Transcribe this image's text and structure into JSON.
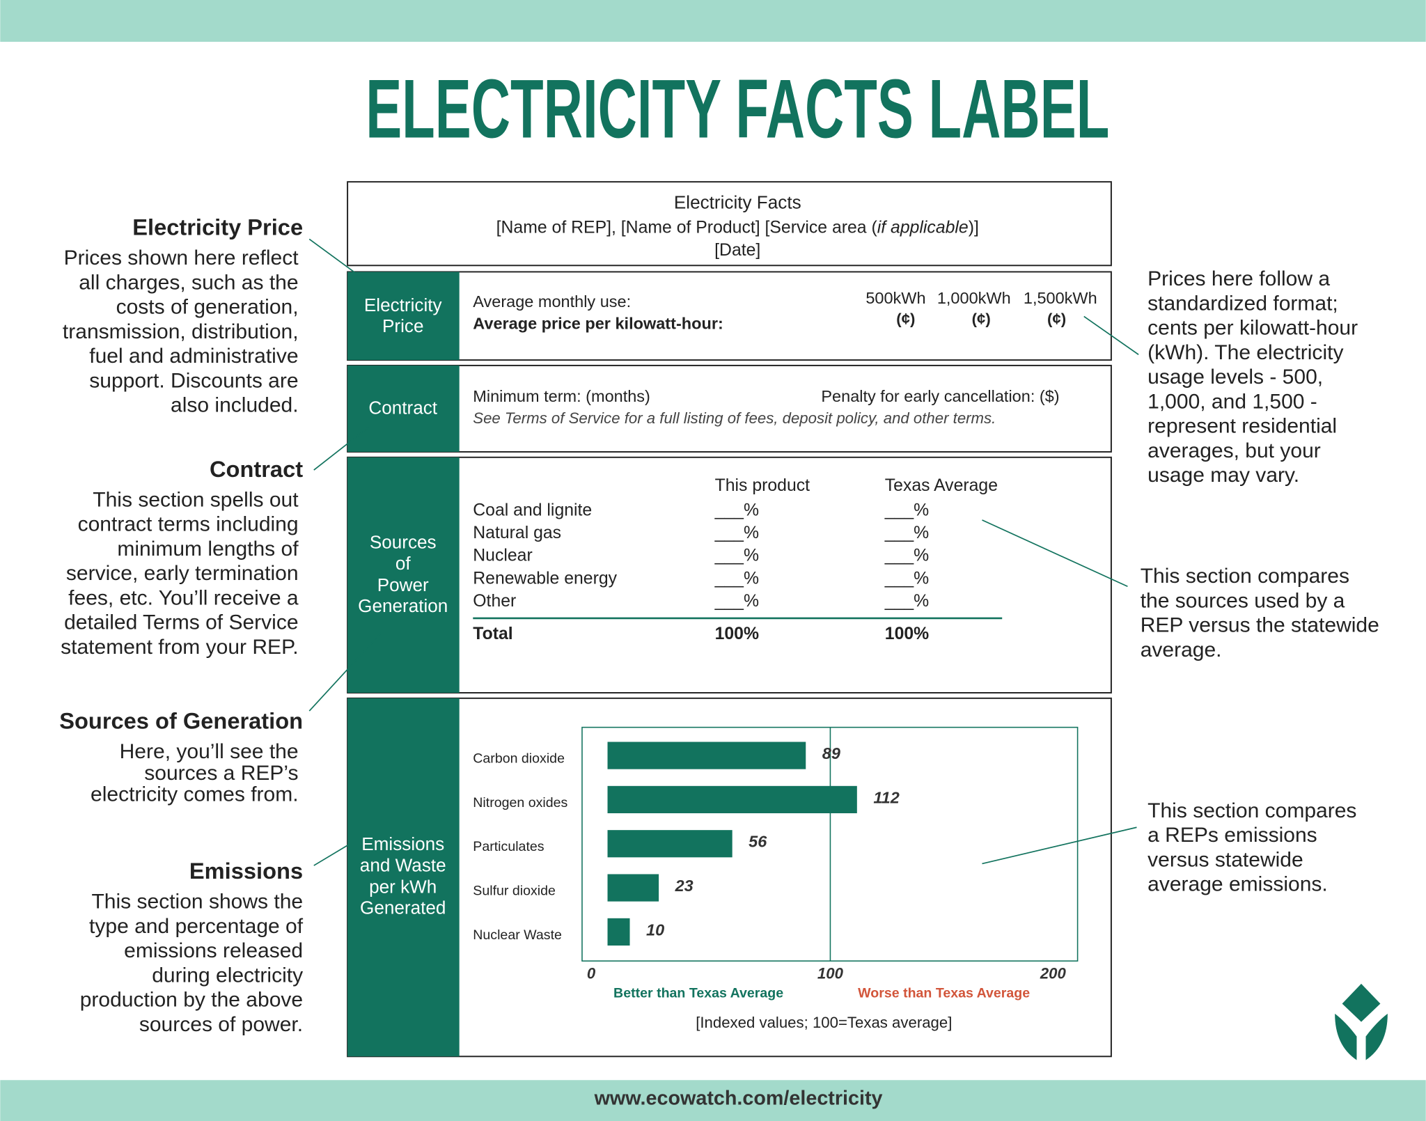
{
  "header": {
    "title": "ELECTRICITY FACTS LABEL",
    "footer": "www.ecowatch.com/electricity"
  },
  "label": {
    "heading": "Electricity Facts",
    "subheading": [
      "[Name of REP], [Name of Product] [Service area (",
      "if applicable",
      ")]"
    ],
    "date": "[Date]",
    "price": {
      "section": [
        "Electricity",
        "Price"
      ],
      "usage_label": "Average monthly use:",
      "price_label": "Average price per kilowatt-hour:",
      "levels": [
        "500kWh",
        "1,000kWh",
        "1,500kWh"
      ],
      "units": [
        "(¢)",
        "(¢)",
        "(¢)"
      ]
    },
    "contract": {
      "section": [
        "Contract"
      ],
      "term": "Minimum term: (months)",
      "penalty": "Penalty for early cancellation: ($)",
      "note": "See Terms of Service for a full listing of fees, deposit policy, and other terms."
    },
    "sources": {
      "section": [
        "Sources",
        "of",
        "Power",
        "Generation"
      ],
      "columns": [
        "This product",
        "Texas Average"
      ],
      "rows": [
        [
          "Coal and lignite",
          "___%",
          "___%"
        ],
        [
          "Natural gas",
          "___%",
          "___%"
        ],
        [
          "Nuclear",
          "___%",
          "___%"
        ],
        [
          "Renewable energy",
          "___%",
          "___%"
        ],
        [
          "Other",
          "___%",
          "___%"
        ]
      ],
      "total": [
        "Total",
        "100%",
        "100%"
      ]
    },
    "emissions": {
      "section": [
        "Emissions",
        "and Waste",
        "per kWh",
        "Generated"
      ]
    }
  },
  "chart_data": {
    "type": "bar",
    "orientation": "horizontal",
    "categories": [
      "Carbon dioxide",
      "Nitrogen oxides",
      "Particulates",
      "Sulfur dioxide",
      "Nuclear Waste"
    ],
    "values": [
      89,
      112,
      56,
      23,
      10
    ],
    "color": "#12735e",
    "xlim": [
      0,
      200
    ],
    "xticks": [
      0,
      100,
      200
    ],
    "better_label": "Better than Texas Average",
    "worse_label": "Worse than Texas Average",
    "note": "[Indexed values; 100=Texas average]"
  },
  "annotations": {
    "left": [
      {
        "title": "Electricity Price",
        "lines": [
          "Prices shown here reflect",
          "all charges, such as the",
          "costs of generation,",
          "transmission, distribution,",
          "fuel and administrative",
          "support. Discounts are",
          "also included."
        ]
      },
      {
        "title": "Contract",
        "lines": [
          "This section spells out",
          "contract terms including",
          "minimum lengths of",
          "service, early termination",
          "fees, etc. You’ll receive a",
          "detailed Terms of Service",
          "statement from your REP."
        ]
      },
      {
        "title": "Sources of Generation",
        "lines": [
          "Here, you’ll see the",
          "sources a REP’s",
          "electricity comes from."
        ]
      },
      {
        "title": "Emissions",
        "lines": [
          "This section shows the",
          "type and percentage of",
          "emissions released",
          "during electricity",
          "production by the above",
          "sources of power."
        ]
      }
    ],
    "right": [
      {
        "lines": [
          "Prices here follow a",
          "standardized format;",
          "cents per kilowatt-hour",
          "(kWh). The electricity",
          "usage levels - 500,",
          "1,000, and 1,500 -",
          "represent residential",
          "averages, but your",
          "usage may vary."
        ]
      },
      {
        "lines": [
          "This section compares",
          "the sources used by a",
          "REP versus the statewide",
          "average."
        ]
      },
      {
        "lines": [
          "This section compares",
          "a REPs emissions",
          "versus statewide",
          "average emissions."
        ]
      }
    ]
  }
}
